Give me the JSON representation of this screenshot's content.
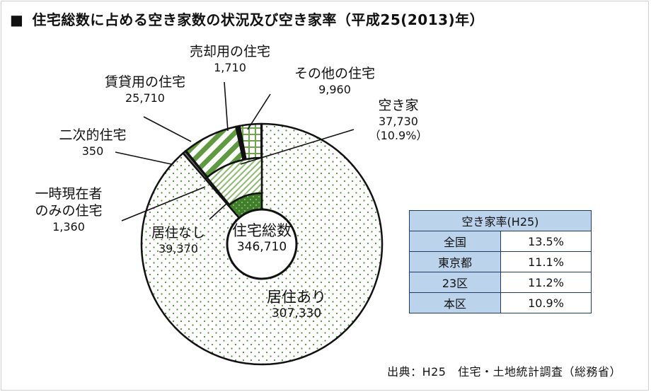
{
  "title": {
    "mark": "■",
    "text": "住宅総数に占める空き家数の状況及び空き家率（平成25(2013)年）"
  },
  "chart_data": {
    "type": "pie",
    "center": {
      "name": "住宅総数",
      "value": "346,710"
    },
    "outer": [
      {
        "name": "居住あり",
        "value": 307330,
        "value_label": "307,330"
      },
      {
        "name": "居住なし",
        "value": 39370,
        "value_label": "39,370"
      }
    ],
    "inner": [
      {
        "name": "一時現在者のみの住宅",
        "value": 1360,
        "value_label": "1,360"
      },
      {
        "name": "空き家",
        "value": 37730,
        "value_label": "37,730",
        "percent_label": "（10.9%）"
      }
    ],
    "akiya_breakdown": [
      {
        "name": "二次的住宅",
        "value": 350,
        "value_label": "350"
      },
      {
        "name": "賃貸用の住宅",
        "value": 25710,
        "value_label": "25,710"
      },
      {
        "name": "売却用の住宅",
        "value": 1710,
        "value_label": "1,710"
      },
      {
        "name": "その他の住宅",
        "value": 9960,
        "value_label": "9,960"
      }
    ],
    "colors": {
      "occupied_dots": "#4f8a3a",
      "dark_green": "#3f7f2a",
      "light_green": "#9dc27a",
      "grid_green": "#5e9a3e"
    }
  },
  "labels": {
    "seasonal_name": "一時現在者",
    "seasonal_name2": "のみの住宅"
  },
  "rate_table": {
    "header": "空き家率(H25)",
    "rows": [
      {
        "label": "全国",
        "value": "13.5%"
      },
      {
        "label": "東京都",
        "value": "11.1%"
      },
      {
        "label": "23区",
        "value": "11.2%"
      },
      {
        "label": "本区",
        "value": "10.9%"
      }
    ]
  },
  "source": "出典：H25　住宅・土地統計調査（総務省）"
}
